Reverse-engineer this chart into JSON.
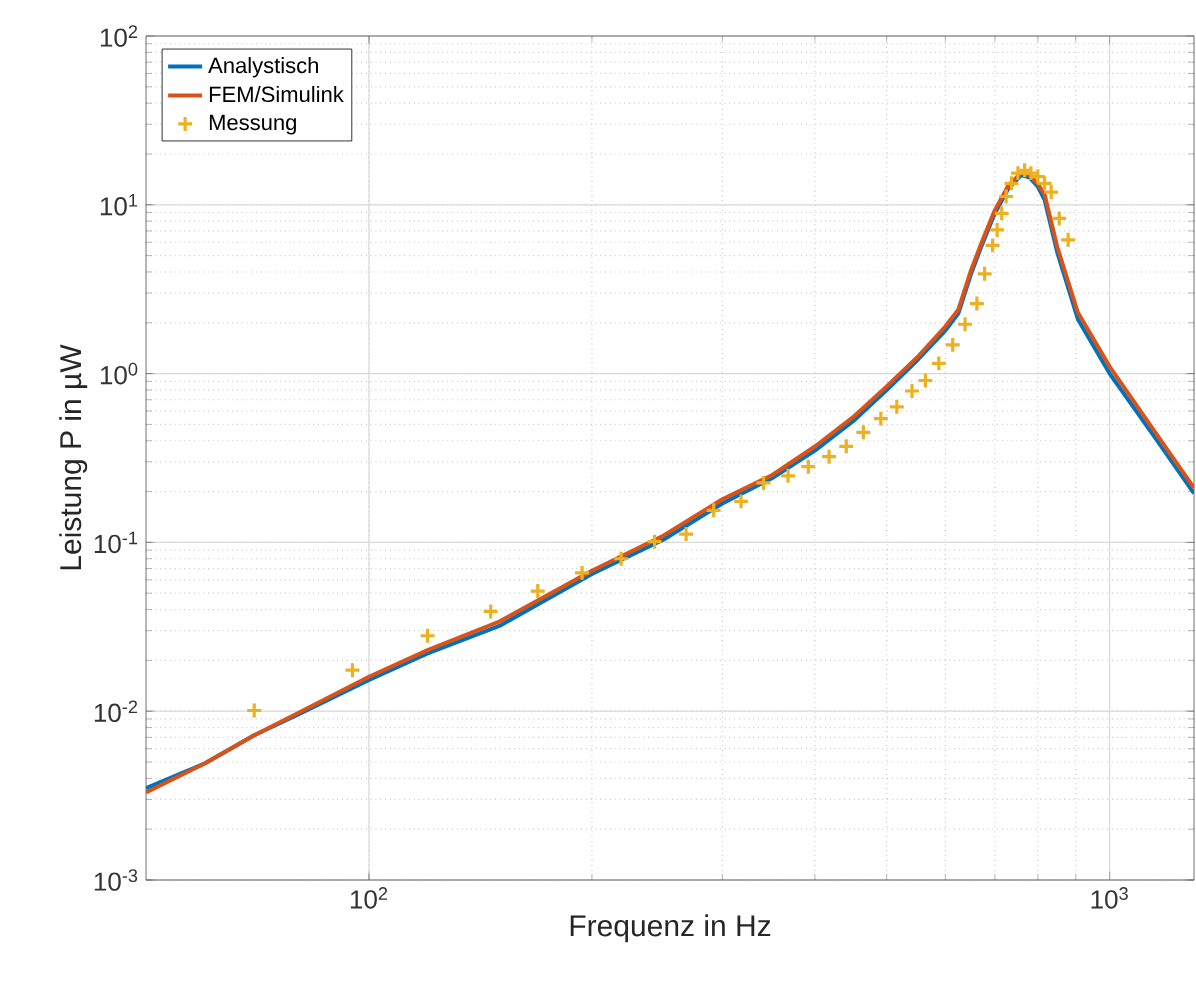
{
  "chart_data": {
    "type": "line",
    "xlabel": "Frequenz in Hz",
    "ylabel": "Leistung P in µW",
    "log": "xy",
    "grid": true,
    "legend": "top left",
    "xlim": [
      50,
      1300
    ],
    "ylim": [
      0.001,
      100
    ],
    "xticks": [
      {
        "value": 100,
        "label": "10$^{2}$"
      },
      {
        "value": 1000,
        "label": "10$^{3}$"
      }
    ],
    "yticks": [
      {
        "value": 0.001,
        "label": "10$^{-3}$"
      },
      {
        "value": 0.01,
        "label": "10$^{-2}$"
      },
      {
        "value": 0.1,
        "label": "10$^{-1}$"
      },
      {
        "value": 1,
        "label": "10$^{0}$"
      },
      {
        "value": 10,
        "label": "10$^{1}$"
      },
      {
        "value": 100,
        "label": "10$^{2}$"
      }
    ],
    "series": [
      {
        "name": "Analystisch",
        "color": "#0072bd",
        "x": [
          50,
          60,
          70,
          80,
          100,
          120,
          150,
          200,
          250,
          300,
          350,
          400,
          450,
          500,
          550,
          600,
          625,
          650,
          672,
          700,
          730,
          760,
          780,
          800,
          817,
          850,
          906,
          1000,
          1160,
          1300
        ],
        "values": [
          0.0035,
          0.0049,
          0.0072,
          0.0095,
          0.0153,
          0.022,
          0.032,
          0.065,
          0.104,
          0.17,
          0.24,
          0.35,
          0.52,
          0.8,
          1.2,
          1.8,
          2.28,
          3.9,
          5.75,
          8.9,
          12.5,
          15,
          14.5,
          12.8,
          10.7,
          5.2,
          2.1,
          1.0,
          0.4,
          0.195
        ]
      },
      {
        "name": "FEM/Simulink",
        "color": "#d95319",
        "x": [
          50,
          60,
          70,
          80,
          100,
          120,
          150,
          200,
          250,
          300,
          350,
          400,
          450,
          500,
          550,
          600,
          625,
          650,
          672,
          700,
          730,
          760,
          780,
          800,
          817,
          850,
          906,
          1000,
          1160,
          1300
        ],
        "values": [
          0.0033,
          0.0049,
          0.0072,
          0.0097,
          0.016,
          0.023,
          0.034,
          0.068,
          0.11,
          0.18,
          0.25,
          0.37,
          0.55,
          0.84,
          1.25,
          1.9,
          2.4,
          4.1,
          6.0,
          9.3,
          13,
          15.5,
          15,
          13.3,
          11.5,
          5.6,
          2.3,
          1.1,
          0.43,
          0.21
        ]
      },
      {
        "name": "Messung",
        "type": "scatter",
        "marker": "cross",
        "color": "#edb120",
        "x": [
          70,
          95,
          120,
          146,
          169,
          194,
          219,
          243,
          268,
          292,
          318,
          341,
          368,
          392,
          418,
          441,
          465,
          491,
          516,
          541,
          564,
          588,
          614,
          638,
          662,
          678,
          695,
          705,
          715,
          725,
          737,
          752,
          768,
          783,
          800,
          817,
          834,
          855,
          879
        ],
        "values": [
          0.0101,
          0.0175,
          0.028,
          0.039,
          0.0515,
          0.066,
          0.08,
          0.101,
          0.112,
          0.155,
          0.175,
          0.225,
          0.248,
          0.281,
          0.322,
          0.371,
          0.449,
          0.541,
          0.636,
          0.789,
          0.91,
          1.15,
          1.48,
          1.96,
          2.6,
          3.9,
          5.75,
          7.1,
          8.9,
          11.2,
          13.4,
          15.4,
          16,
          15.4,
          14.7,
          13.4,
          11.9,
          8.3,
          6.2
        ]
      }
    ]
  }
}
